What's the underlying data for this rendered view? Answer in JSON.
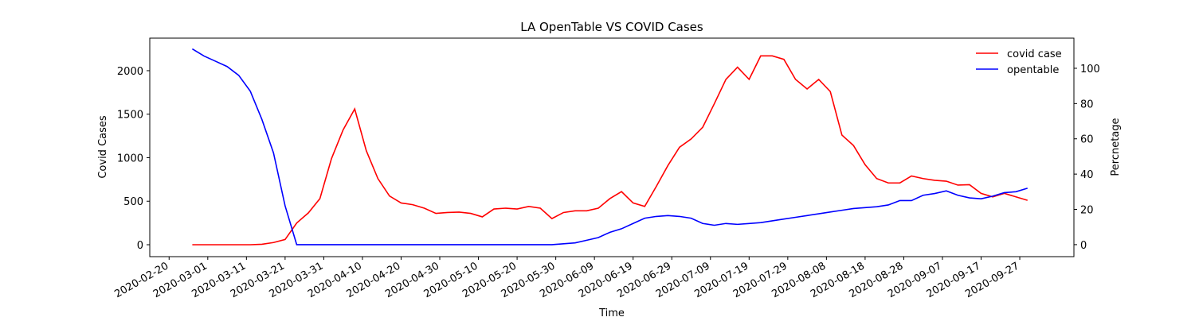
{
  "chart_data": {
    "type": "line",
    "title": "LA OpenTable VS COVID Cases",
    "xlabel": "Time",
    "ylabel": "Covid Cases",
    "y2label": "Percnetage",
    "x": [
      "2020-02-26",
      "2020-02-29",
      "2020-03-03",
      "2020-03-06",
      "2020-03-09",
      "2020-03-12",
      "2020-03-15",
      "2020-03-18",
      "2020-03-21",
      "2020-03-24",
      "2020-03-27",
      "2020-03-30",
      "2020-04-02",
      "2020-04-05",
      "2020-04-08",
      "2020-04-11",
      "2020-04-14",
      "2020-04-17",
      "2020-04-20",
      "2020-04-23",
      "2020-04-26",
      "2020-04-29",
      "2020-05-02",
      "2020-05-05",
      "2020-05-08",
      "2020-05-11",
      "2020-05-14",
      "2020-05-17",
      "2020-05-20",
      "2020-05-23",
      "2020-05-26",
      "2020-05-29",
      "2020-06-01",
      "2020-06-04",
      "2020-06-07",
      "2020-06-10",
      "2020-06-13",
      "2020-06-16",
      "2020-06-19",
      "2020-06-22",
      "2020-06-25",
      "2020-06-28",
      "2020-07-01",
      "2020-07-04",
      "2020-07-07",
      "2020-07-10",
      "2020-07-13",
      "2020-07-16",
      "2020-07-19",
      "2020-07-22",
      "2020-07-25",
      "2020-07-28",
      "2020-07-31",
      "2020-08-03",
      "2020-08-06",
      "2020-08-09",
      "2020-08-12",
      "2020-08-15",
      "2020-08-18",
      "2020-08-21",
      "2020-08-24",
      "2020-08-27",
      "2020-08-30",
      "2020-09-02",
      "2020-09-05",
      "2020-09-08",
      "2020-09-11",
      "2020-09-14",
      "2020-09-17",
      "2020-09-20",
      "2020-09-23",
      "2020-09-26",
      "2020-09-29"
    ],
    "series": [
      {
        "name": "covid case",
        "color": "#ff0000",
        "axis": "y",
        "values": [
          0,
          0,
          0,
          0,
          0,
          0,
          5,
          25,
          60,
          250,
          365,
          530,
          990,
          1320,
          1560,
          1080,
          760,
          560,
          480,
          460,
          420,
          360,
          370,
          375,
          360,
          320,
          410,
          420,
          410,
          440,
          420,
          300,
          370,
          390,
          390,
          420,
          530,
          610,
          480,
          440,
          670,
          910,
          1120,
          1215,
          1350,
          1620,
          1900,
          2040,
          1900,
          2170,
          2170,
          2130,
          1900,
          1790,
          1900,
          1760,
          1260,
          1140,
          920,
          760,
          710,
          710,
          790,
          760,
          740,
          730,
          685,
          690,
          590,
          550,
          590,
          550,
          510
        ]
      },
      {
        "name": "opentable",
        "color": "#0000ff",
        "axis": "y2",
        "values": [
          111,
          107,
          104,
          101,
          96,
          87,
          71,
          52,
          22,
          0,
          0,
          0,
          0,
          0,
          0,
          0,
          0,
          0,
          0,
          0,
          0,
          0,
          0,
          0,
          0,
          0,
          0,
          0,
          0,
          0,
          0,
          0,
          0.5,
          1,
          2.5,
          4,
          7,
          9,
          12,
          15,
          16,
          16.5,
          16,
          15,
          12,
          11,
          12,
          11.5,
          12,
          12.5,
          13.5,
          14.5,
          15.5,
          16.5,
          17.5,
          18.5,
          19.5,
          20.5,
          21,
          21.5,
          22.5,
          25,
          25,
          28,
          29,
          30.5,
          28,
          26.5,
          26,
          27.5,
          29.5,
          30,
          32
        ]
      }
    ],
    "xlim": [
      "2020-02-15",
      "2020-10-11"
    ],
    "xticks": [
      "2020-02-20",
      "2020-03-01",
      "2020-03-11",
      "2020-03-21",
      "2020-03-31",
      "2020-04-10",
      "2020-04-20",
      "2020-04-30",
      "2020-05-10",
      "2020-05-20",
      "2020-05-30",
      "2020-06-09",
      "2020-06-19",
      "2020-06-29",
      "2020-07-09",
      "2020-07-19",
      "2020-07-29",
      "2020-08-08",
      "2020-08-18",
      "2020-08-28",
      "2020-09-07",
      "2020-09-17",
      "2020-09-27"
    ],
    "ylim": [
      -137,
      2374
    ],
    "yticks": [
      0,
      500,
      1000,
      1500,
      2000
    ],
    "y2lim": [
      -6.8,
      117.1
    ],
    "y2ticks": [
      0,
      20,
      40,
      60,
      80,
      100
    ],
    "legend": "upper right"
  }
}
